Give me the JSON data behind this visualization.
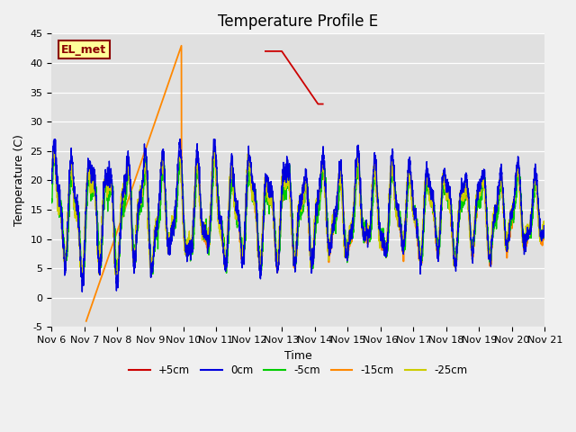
{
  "title": "Temperature Profile E",
  "xlabel": "Time",
  "ylabel": "Temperature (C)",
  "ylim": [
    -5,
    45
  ],
  "xlim": [
    0,
    15
  ],
  "x_tick_labels": [
    "Nov 6",
    "Nov 7",
    "Nov 8",
    "Nov 9",
    "Nov 10",
    "Nov 11",
    "Nov 12",
    "Nov 13",
    "Nov 14",
    "Nov 15",
    "Nov 16",
    "Nov 17",
    "Nov 18",
    "Nov 19",
    "Nov 20",
    "Nov 21"
  ],
  "annotation_text": "EL_met",
  "legend_labels": [
    "+5cm",
    "0cm",
    "-5cm",
    "-15cm",
    "-25cm"
  ],
  "legend_colors": [
    "#cc0000",
    "#0000dd",
    "#00cc00",
    "#ff8800",
    "#cccc00"
  ],
  "bg_color": "#e0e0e0",
  "fig_color": "#f0f0f0",
  "title_fontsize": 12,
  "label_fontsize": 9,
  "tick_fontsize": 8
}
